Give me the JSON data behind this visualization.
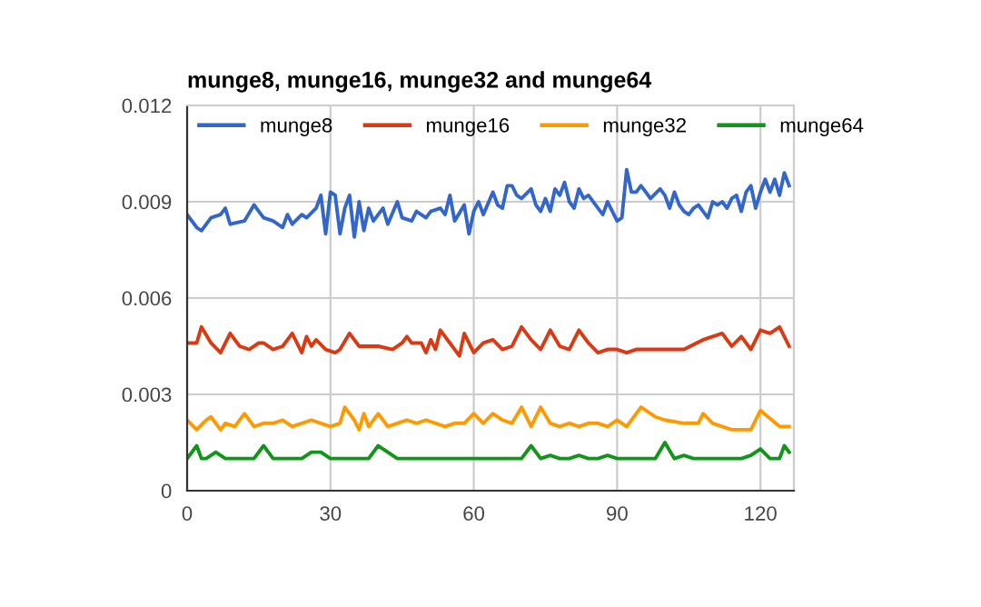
{
  "chart_data": {
    "type": "line",
    "title": "munge8, munge16, munge32 and munge64",
    "xlim": [
      0,
      127
    ],
    "xticks": [
      0,
      30,
      60,
      90,
      120
    ],
    "ylim": [
      0,
      0.012
    ],
    "yticks": [
      {
        "value": 0,
        "label": "0"
      },
      {
        "value": 0.003,
        "label": "0.003"
      },
      {
        "value": 0.006,
        "label": "0.006"
      },
      {
        "value": 0.009,
        "label": "0.009"
      },
      {
        "value": 0.012,
        "label": "0.012"
      }
    ],
    "grid": true,
    "legend": "top",
    "marker": "none",
    "line_style": "solid",
    "series": [
      {
        "name": "munge8",
        "color": "#3366cc",
        "x": [
          0,
          2,
          3,
          5,
          7,
          8,
          9,
          12,
          14,
          16,
          18,
          20,
          21,
          22,
          24,
          25,
          27,
          28,
          29,
          30,
          31,
          32,
          33,
          34,
          35,
          36,
          37,
          38,
          39,
          41,
          42,
          44,
          45,
          47,
          48,
          50,
          51,
          53,
          54,
          55,
          56,
          58,
          59,
          60,
          61,
          62,
          64,
          65,
          66,
          67,
          68,
          69,
          70,
          72,
          73,
          74,
          75,
          76,
          77,
          78,
          79,
          80,
          81,
          82,
          83,
          84,
          86,
          87,
          88,
          89,
          90,
          91,
          92,
          93,
          94,
          95,
          96,
          97,
          99,
          100,
          101,
          102,
          103,
          104,
          105,
          106,
          107,
          108,
          109,
          110,
          111,
          112,
          113,
          114,
          115,
          116,
          117,
          118,
          119,
          120,
          121,
          122,
          123,
          124,
          125,
          126
        ],
        "values": [
          0.0086,
          0.0082,
          0.0081,
          0.0085,
          0.0086,
          0.0088,
          0.0083,
          0.0084,
          0.0089,
          0.0085,
          0.0084,
          0.0082,
          0.0086,
          0.0083,
          0.0086,
          0.0085,
          0.0088,
          0.0092,
          0.008,
          0.0093,
          0.0092,
          0.008,
          0.0088,
          0.0092,
          0.0079,
          0.009,
          0.0081,
          0.0088,
          0.0084,
          0.0088,
          0.0083,
          0.009,
          0.0085,
          0.0084,
          0.0087,
          0.0085,
          0.0087,
          0.0088,
          0.0086,
          0.0092,
          0.0084,
          0.0089,
          0.008,
          0.0087,
          0.009,
          0.0086,
          0.0093,
          0.0089,
          0.0088,
          0.0095,
          0.0095,
          0.0092,
          0.0091,
          0.0094,
          0.0089,
          0.0087,
          0.0091,
          0.0087,
          0.0094,
          0.0092,
          0.0096,
          0.009,
          0.0088,
          0.0094,
          0.0091,
          0.0092,
          0.0088,
          0.0086,
          0.009,
          0.0087,
          0.0084,
          0.0085,
          0.01,
          0.0093,
          0.0093,
          0.0095,
          0.0093,
          0.0091,
          0.0094,
          0.0092,
          0.0088,
          0.0093,
          0.0089,
          0.0087,
          0.0086,
          0.0088,
          0.0089,
          0.0087,
          0.0085,
          0.009,
          0.0089,
          0.009,
          0.0088,
          0.0091,
          0.0092,
          0.0087,
          0.0093,
          0.0095,
          0.0088,
          0.0093,
          0.0097,
          0.0093,
          0.0097,
          0.0092,
          0.0099,
          0.0095
        ]
      },
      {
        "name": "munge16",
        "color": "#dc3912",
        "x": [
          0,
          2,
          3,
          5,
          7,
          9,
          11,
          13,
          15,
          16,
          18,
          20,
          22,
          24,
          25,
          26,
          27,
          29,
          31,
          32,
          34,
          36,
          38,
          40,
          43,
          45,
          46,
          47,
          49,
          50,
          51,
          52,
          53,
          55,
          57,
          58,
          60,
          62,
          64,
          66,
          68,
          70,
          72,
          74,
          76,
          78,
          80,
          82,
          84,
          86,
          88,
          90,
          92,
          94,
          96,
          100,
          104,
          108,
          112,
          114,
          116,
          118,
          120,
          122,
          124,
          126
        ],
        "values": [
          0.0046,
          0.0046,
          0.0051,
          0.0046,
          0.0043,
          0.0049,
          0.0045,
          0.0044,
          0.0046,
          0.0046,
          0.0044,
          0.0045,
          0.0049,
          0.0043,
          0.0048,
          0.0045,
          0.0047,
          0.0044,
          0.0043,
          0.0044,
          0.0049,
          0.0045,
          0.0045,
          0.0045,
          0.0044,
          0.0046,
          0.0048,
          0.0046,
          0.0046,
          0.0043,
          0.0047,
          0.0044,
          0.005,
          0.0046,
          0.0042,
          0.0049,
          0.0043,
          0.0046,
          0.0047,
          0.0044,
          0.0045,
          0.0051,
          0.0047,
          0.0044,
          0.005,
          0.0045,
          0.0044,
          0.005,
          0.0046,
          0.0043,
          0.0044,
          0.0044,
          0.0043,
          0.0044,
          0.0044,
          0.0044,
          0.0044,
          0.0047,
          0.0049,
          0.0045,
          0.0048,
          0.0044,
          0.005,
          0.0049,
          0.0051,
          0.0045
        ]
      },
      {
        "name": "munge32",
        "color": "#ff9900",
        "x": [
          0,
          2,
          4,
          5,
          7,
          8,
          10,
          12,
          14,
          16,
          18,
          20,
          22,
          24,
          26,
          28,
          30,
          32,
          33,
          35,
          36,
          37,
          38,
          40,
          42,
          44,
          46,
          48,
          50,
          52,
          54,
          56,
          58,
          60,
          62,
          64,
          66,
          68,
          70,
          72,
          74,
          76,
          78,
          80,
          82,
          84,
          86,
          88,
          90,
          92,
          95,
          98,
          100,
          104,
          107,
          108,
          110,
          112,
          114,
          116,
          118,
          120,
          124,
          126
        ],
        "values": [
          0.0022,
          0.0019,
          0.0022,
          0.0023,
          0.0019,
          0.0021,
          0.002,
          0.0024,
          0.002,
          0.0021,
          0.0021,
          0.0022,
          0.002,
          0.0021,
          0.0022,
          0.0021,
          0.002,
          0.0021,
          0.0026,
          0.0022,
          0.0019,
          0.0024,
          0.002,
          0.0024,
          0.002,
          0.0021,
          0.0022,
          0.0021,
          0.0022,
          0.0021,
          0.002,
          0.0021,
          0.0021,
          0.0024,
          0.0021,
          0.0024,
          0.0022,
          0.0021,
          0.0026,
          0.002,
          0.0026,
          0.0021,
          0.002,
          0.0021,
          0.002,
          0.0021,
          0.0021,
          0.002,
          0.0022,
          0.002,
          0.0026,
          0.0023,
          0.0022,
          0.0021,
          0.0021,
          0.0024,
          0.0021,
          0.002,
          0.0019,
          0.0019,
          0.0019,
          0.0025,
          0.002,
          0.002
        ]
      },
      {
        "name": "munge64",
        "color": "#109618",
        "x": [
          0,
          2,
          3,
          4,
          6,
          8,
          10,
          12,
          14,
          16,
          18,
          20,
          22,
          24,
          26,
          28,
          30,
          32,
          34,
          36,
          38,
          40,
          44,
          48,
          50,
          52,
          54,
          56,
          58,
          60,
          62,
          64,
          66,
          68,
          70,
          72,
          74,
          76,
          78,
          80,
          82,
          84,
          86,
          88,
          90,
          92,
          94,
          96,
          98,
          100,
          102,
          104,
          106,
          108,
          110,
          112,
          114,
          116,
          118,
          120,
          122,
          124,
          125,
          126
        ],
        "values": [
          0.001,
          0.0014,
          0.001,
          0.001,
          0.0012,
          0.001,
          0.001,
          0.001,
          0.001,
          0.0014,
          0.001,
          0.001,
          0.001,
          0.001,
          0.0012,
          0.0012,
          0.001,
          0.001,
          0.001,
          0.001,
          0.001,
          0.0014,
          0.001,
          0.001,
          0.001,
          0.001,
          0.001,
          0.001,
          0.001,
          0.001,
          0.001,
          0.001,
          0.001,
          0.001,
          0.001,
          0.0014,
          0.001,
          0.0011,
          0.001,
          0.001,
          0.0011,
          0.001,
          0.001,
          0.0011,
          0.001,
          0.001,
          0.001,
          0.001,
          0.001,
          0.0015,
          0.001,
          0.0011,
          0.001,
          0.001,
          0.001,
          0.001,
          0.001,
          0.001,
          0.0011,
          0.0013,
          0.001,
          0.001,
          0.0014,
          0.0012
        ]
      }
    ]
  }
}
